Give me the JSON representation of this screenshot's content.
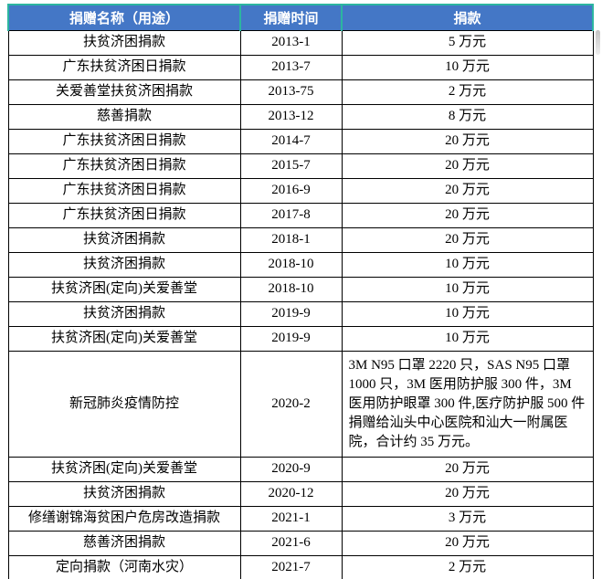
{
  "colors": {
    "header_bg": "#4477C6",
    "header_border_teal": "#2CB5A0",
    "header_text": "#FFFFFF",
    "body_border": "#000000",
    "body_text": "#000000",
    "scrollbar_thumb": "#C3C3C3"
  },
  "table": {
    "headers": {
      "name": "捐赠名称（用途）",
      "date": "捐赠时间",
      "amount": "捐款"
    },
    "rows": [
      {
        "name": "扶贫济困捐款",
        "date": "2013-1",
        "amount": "5 万元"
      },
      {
        "name": "广东扶贫济困日捐款",
        "date": "2013-7",
        "amount": "10 万元"
      },
      {
        "name": "关爱善堂扶贫济困捐款",
        "date": "2013-75",
        "amount": "2 万元"
      },
      {
        "name": "慈善捐款",
        "date": "2013-12",
        "amount": "8 万元"
      },
      {
        "name": "广东扶贫济困日捐款",
        "date": "2014-7",
        "amount": "20 万元"
      },
      {
        "name": "广东扶贫济困日捐款",
        "date": "2015-7",
        "amount": "20 万元"
      },
      {
        "name": "广东扶贫济困日捐款",
        "date": "2016-9",
        "amount": "20 万元"
      },
      {
        "name": "广东扶贫济困日捐款",
        "date": "2017-8",
        "amount": "20 万元"
      },
      {
        "name": "扶贫济困捐款",
        "date": "2018-1",
        "amount": "20 万元"
      },
      {
        "name": "扶贫济困捐款",
        "date": "2018-10",
        "amount": "10 万元"
      },
      {
        "name": "扶贫济困(定向)关爱善堂",
        "date": "2018-10",
        "amount": "10 万元"
      },
      {
        "name": "扶贫济困捐款",
        "date": "2019-9",
        "amount": "10 万元"
      },
      {
        "name": "扶贫济困(定向)关爱善堂",
        "date": "2019-9",
        "amount": "10 万元"
      },
      {
        "name": "新冠肺炎疫情防控",
        "date": "2020-2",
        "amount": "3M N95 口罩 2220 只，SAS N95 口罩 1000 只，3M 医用防护服 300 件，3M 医用防护眼罩 300 件,医疗防护服 500 件捐赠给汕头中心医院和汕大一附属医院，合计约 35 万元。"
      },
      {
        "name": "扶贫济困(定向)关爱善堂",
        "date": "2020-9",
        "amount": "20 万元"
      },
      {
        "name": "扶贫济困捐款",
        "date": "2020-12",
        "amount": "20 万元"
      },
      {
        "name": "修缮谢锦海贫困户危房改造捐款",
        "date": "2021-1",
        "amount": "3 万元"
      },
      {
        "name": "慈善济困捐款",
        "date": "2021-6",
        "amount": "20 万元"
      },
      {
        "name": "定向捐款（河南水灾）",
        "date": "2021-7",
        "amount": "2 万元"
      }
    ]
  }
}
